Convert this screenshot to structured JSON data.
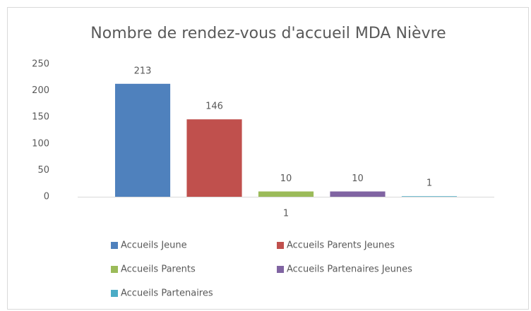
{
  "chart_data": {
    "type": "bar",
    "title": "Nombre de rendez-vous d'accueil MDA Nièvre",
    "categories": [
      "1"
    ],
    "series": [
      {
        "name": "Accueils Jeune",
        "color": "#4f81bd",
        "values": [
          213
        ]
      },
      {
        "name": "Accueils Parents Jeunes",
        "color": "#c0504d",
        "values": [
          146
        ]
      },
      {
        "name": "Accueils Parents",
        "color": "#9bbb59",
        "values": [
          10
        ]
      },
      {
        "name": "Accueils Partenaires Jeunes",
        "color": "#8064a2",
        "values": [
          10
        ]
      },
      {
        "name": "Accueils Partenaires",
        "color": "#4bacc6",
        "values": [
          1
        ]
      }
    ],
    "ylim": [
      0,
      250
    ],
    "yticks": [
      0,
      50,
      100,
      150,
      200,
      250
    ],
    "grid": false,
    "data_labels": true,
    "legend": "bottom"
  }
}
